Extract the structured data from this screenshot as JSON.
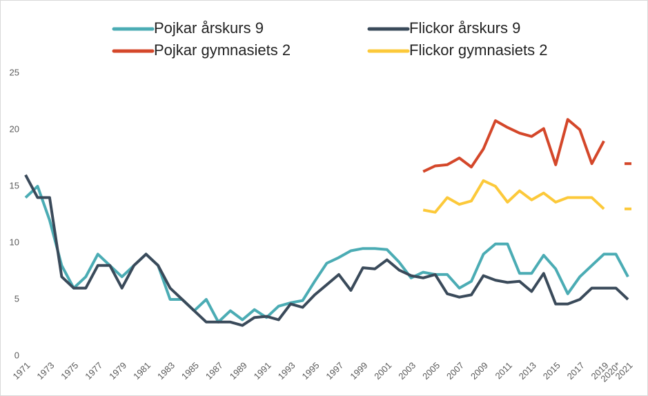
{
  "chart_data": {
    "type": "line",
    "categories": [
      "1971",
      null,
      "1973",
      null,
      "1975",
      null,
      "1977",
      null,
      "1979",
      null,
      "1981",
      null,
      "1983",
      null,
      "1985",
      null,
      "1987",
      null,
      "1989",
      null,
      "1991",
      null,
      "1993",
      null,
      "1995",
      null,
      "1997",
      null,
      "1999",
      null,
      "2001",
      null,
      "2003",
      null,
      "2005",
      null,
      "2007",
      null,
      "2009",
      null,
      "2011",
      null,
      "2013",
      null,
      "2015",
      null,
      "2017",
      null,
      "2019",
      "2020*",
      "2021"
    ],
    "series": [
      {
        "name": "Pojkar årskurs 9",
        "color": "#4bacb4",
        "values": [
          14,
          15,
          12,
          8,
          6,
          7,
          9,
          8,
          7,
          8,
          9,
          8,
          5,
          5,
          4,
          5,
          3,
          4,
          3.2,
          4.1,
          3.4,
          4.4,
          4.7,
          4.9,
          6.6,
          8.2,
          8.7,
          9.3,
          9.5,
          9.5,
          9.4,
          8.3,
          6.9,
          7.4,
          7.2,
          7.2,
          6.0,
          6.6,
          9.0,
          9.9,
          9.9,
          7.3,
          7.3,
          8.9,
          7.7,
          5.5,
          7.0,
          8.0,
          9.0,
          9.0,
          7.0
        ]
      },
      {
        "name": "Flickor årskurs 9",
        "color": "#3a4a5a",
        "values": [
          16,
          14,
          14,
          7,
          6,
          6,
          8,
          8,
          6,
          8,
          9,
          8,
          6,
          5,
          4,
          3,
          3,
          3,
          2.7,
          3.4,
          3.5,
          3.2,
          4.6,
          4.3,
          5.4,
          6.3,
          7.2,
          5.8,
          7.8,
          7.7,
          8.5,
          7.6,
          7.1,
          6.9,
          7.2,
          5.5,
          5.2,
          5.4,
          7.1,
          6.7,
          6.5,
          6.6,
          5.7,
          7.3,
          4.6,
          4.6,
          5.0,
          6.0,
          6.0,
          6.0,
          5.0
        ]
      },
      {
        "name": "Pojkar gymnasiets 2",
        "color": "#d4472a",
        "values": [
          null,
          null,
          null,
          null,
          null,
          null,
          null,
          null,
          null,
          null,
          null,
          null,
          null,
          null,
          null,
          null,
          null,
          null,
          null,
          null,
          null,
          null,
          null,
          null,
          null,
          null,
          null,
          null,
          null,
          null,
          null,
          null,
          null,
          16.3,
          16.8,
          16.9,
          17.5,
          16.7,
          18.3,
          20.8,
          20.2,
          19.7,
          19.4,
          20.1,
          16.9,
          20.9,
          20.0,
          17.0,
          19.0,
          null,
          17
        ]
      },
      {
        "name": "Flickor gymnasiets 2",
        "color": "#fcc93a",
        "values": [
          null,
          null,
          null,
          null,
          null,
          null,
          null,
          null,
          null,
          null,
          null,
          null,
          null,
          null,
          null,
          null,
          null,
          null,
          null,
          null,
          null,
          null,
          null,
          null,
          null,
          null,
          null,
          null,
          null,
          null,
          null,
          null,
          null,
          12.9,
          12.7,
          14.0,
          13.4,
          13.7,
          15.5,
          15.0,
          13.6,
          14.6,
          13.8,
          14.4,
          13.6,
          14.0,
          14.0,
          14.0,
          13.0,
          null,
          13
        ]
      }
    ],
    "ylim": [
      0,
      30
    ],
    "yticks": [
      0,
      5,
      10,
      15,
      20,
      25
    ],
    "grid": false
  }
}
